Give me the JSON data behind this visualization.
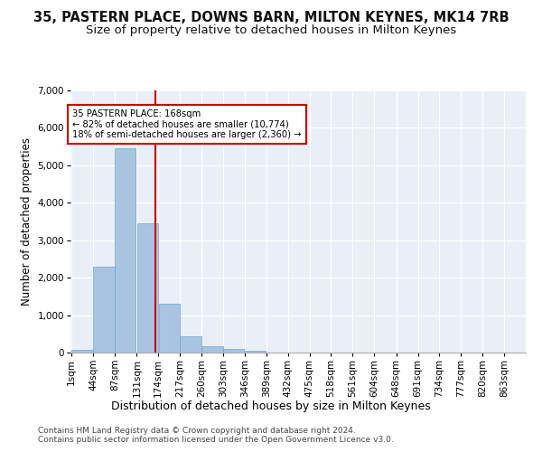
{
  "title_line1": "35, PASTERN PLACE, DOWNS BARN, MILTON KEYNES, MK14 7RB",
  "title_line2": "Size of property relative to detached houses in Milton Keynes",
  "xlabel": "Distribution of detached houses by size in Milton Keynes",
  "ylabel": "Number of detached properties",
  "footnote1": "Contains HM Land Registry data © Crown copyright and database right 2024.",
  "footnote2": "Contains public sector information licensed under the Open Government Licence v3.0.",
  "annotation_title": "35 PASTERN PLACE: 168sqm",
  "annotation_line1": "← 82% of detached houses are smaller (10,774)",
  "annotation_line2": "18% of semi-detached houses are larger (2,360) →",
  "bar_color": "#a8c4e0",
  "bar_edge_color": "#6ea8d0",
  "marker_line_color": "#cc0000",
  "marker_value": 168,
  "categories": [
    "1sqm",
    "44sqm",
    "87sqm",
    "131sqm",
    "174sqm",
    "217sqm",
    "260sqm",
    "303sqm",
    "346sqm",
    "389sqm",
    "432sqm",
    "475sqm",
    "518sqm",
    "561sqm",
    "604sqm",
    "648sqm",
    "691sqm",
    "734sqm",
    "777sqm",
    "820sqm",
    "863sqm"
  ],
  "bin_edges": [
    1,
    44,
    87,
    131,
    174,
    217,
    260,
    303,
    346,
    389,
    432,
    475,
    518,
    561,
    604,
    648,
    691,
    734,
    777,
    820,
    863,
    906
  ],
  "values": [
    70,
    2300,
    5450,
    3450,
    1300,
    430,
    160,
    90,
    60,
    0,
    0,
    0,
    0,
    0,
    0,
    0,
    0,
    0,
    0,
    0,
    0
  ],
  "ylim": [
    0,
    7000
  ],
  "yticks": [
    0,
    1000,
    2000,
    3000,
    4000,
    5000,
    6000,
    7000
  ],
  "background_color": "#eaeff7",
  "grid_color": "#ffffff",
  "title1_fontsize": 10.5,
  "title2_fontsize": 9.5,
  "axis_label_fontsize": 8.5,
  "tick_fontsize": 7.5,
  "footnote_fontsize": 6.5
}
